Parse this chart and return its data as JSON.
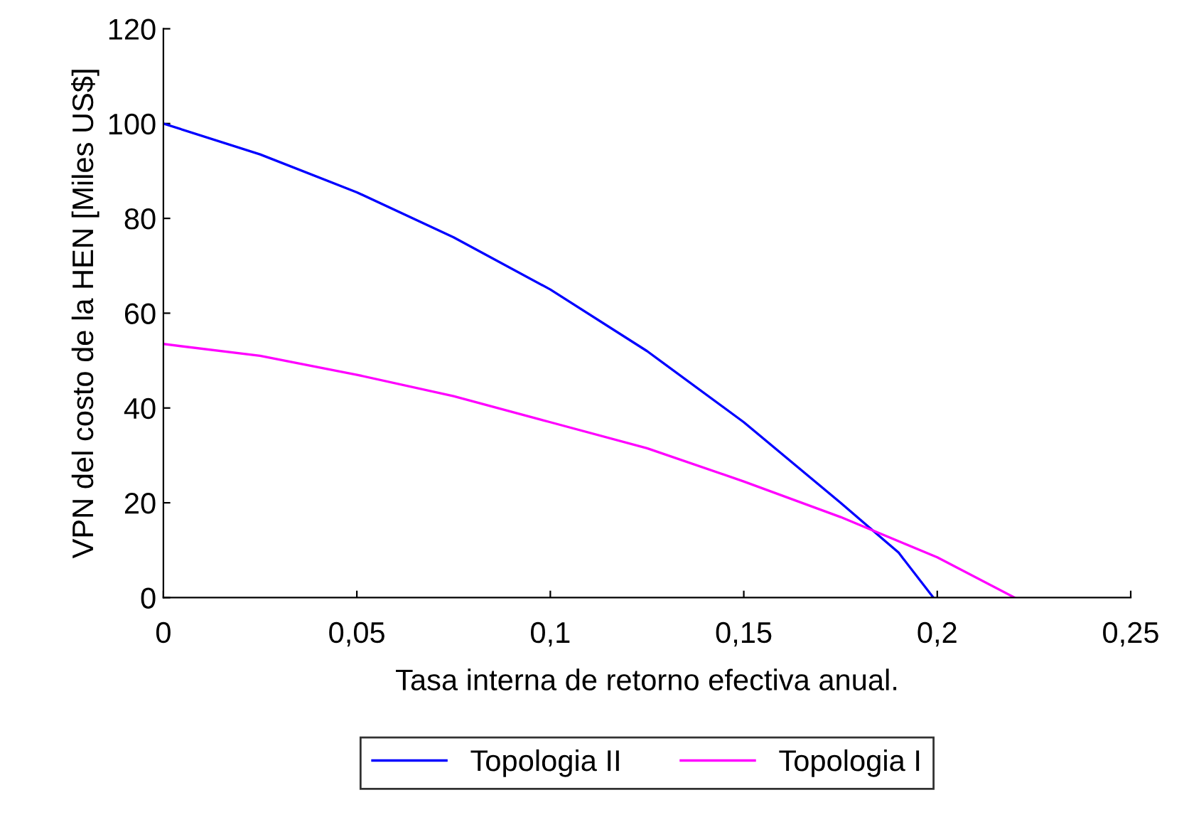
{
  "chart_data": {
    "type": "line",
    "xlabel": "Tasa interna de retorno efectiva anual.",
    "ylabel": "VPN del costo de la HEN [Miles US$]",
    "xlim": [
      0,
      0.25
    ],
    "ylim": [
      0,
      120
    ],
    "xticks": [
      0,
      {
        "value": 0.05,
        "label": "0,05"
      },
      {
        "value": 0.1,
        "label": "0,1"
      },
      {
        "value": 0.15,
        "label": "0,15"
      },
      {
        "value": 0.2,
        "label": "0,2"
      },
      {
        "value": 0.25,
        "label": "0,25"
      }
    ],
    "yticks": [
      0,
      20,
      40,
      60,
      80,
      100,
      120
    ],
    "grid": false,
    "legend": "bottom",
    "marker": "none",
    "line_style": "solid",
    "series": [
      {
        "name": "Topologia II",
        "color": "#0000ff",
        "x": [
          0,
          0.025,
          0.05,
          0.075,
          0.1,
          0.125,
          0.15,
          0.175,
          0.19,
          0.199
        ],
        "values": [
          100,
          93.5,
          85.5,
          76,
          65,
          52,
          37,
          20,
          9.5,
          0
        ]
      },
      {
        "name": "Topologia I",
        "color": "#ff00ff",
        "x": [
          0,
          0.025,
          0.05,
          0.075,
          0.1,
          0.125,
          0.15,
          0.175,
          0.2,
          0.22
        ],
        "values": [
          53.5,
          51,
          47,
          42.5,
          37,
          31.5,
          24.5,
          17,
          8.5,
          0
        ]
      }
    ]
  }
}
